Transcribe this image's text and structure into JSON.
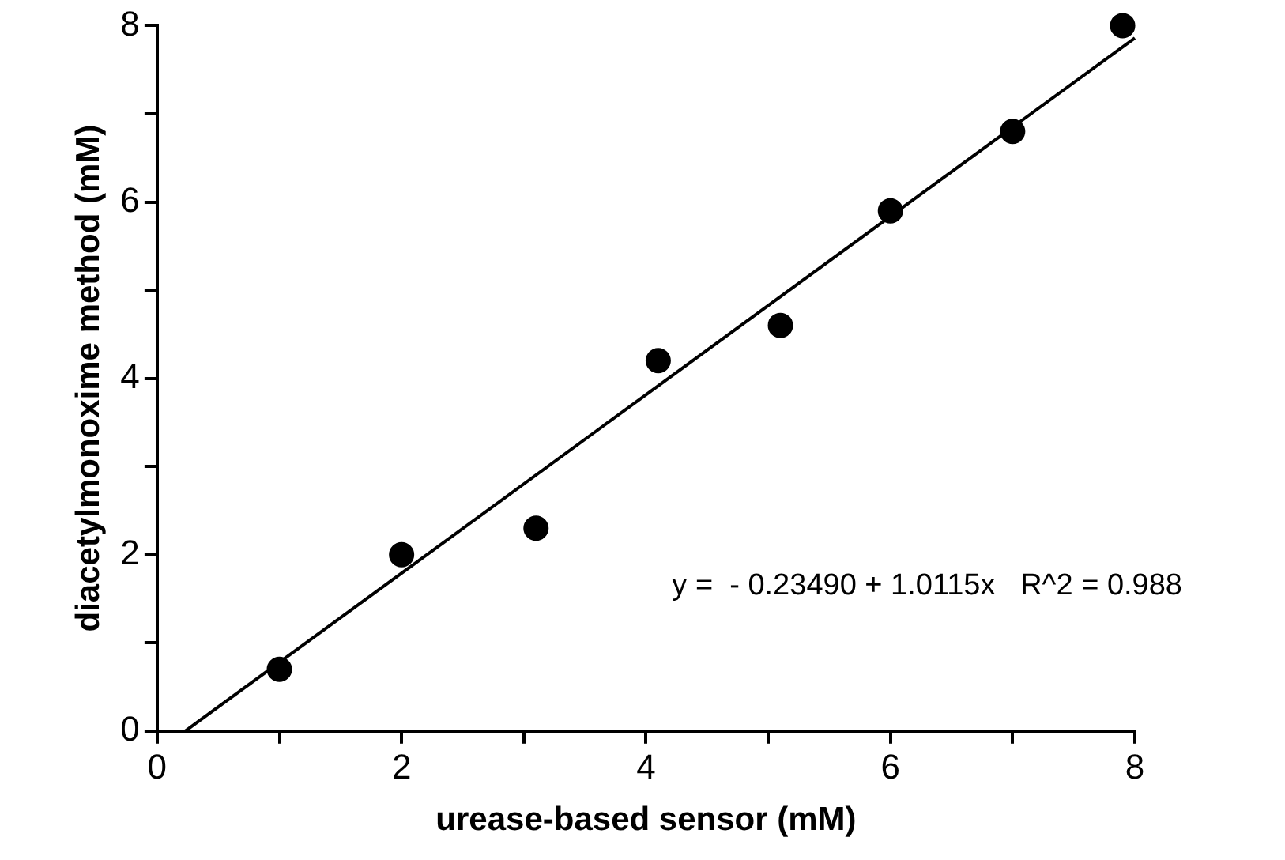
{
  "chart_data": {
    "type": "scatter",
    "xlabel": "urease-based sensor (mM)",
    "ylabel": "diacetylmonoxime method (mM)",
    "series": [
      {
        "color": "#000000",
        "x": [
          1.0,
          2.0,
          3.1,
          4.1,
          5.1,
          6.0,
          7.0,
          7.9
        ],
        "values": [
          0.7,
          2.0,
          2.3,
          4.2,
          4.6,
          5.9,
          6.8,
          8.0
        ],
        "marker": "circle"
      },
      {
        "type": "line",
        "color": "#000000",
        "x": [
          0.23,
          8.0
        ],
        "values": [
          0,
          7.86
        ],
        "marker": "none",
        "line_style": "solid"
      }
    ],
    "xlim": [
      0,
      8
    ],
    "ylim": [
      0,
      8
    ],
    "xticks": [
      0,
      {
        "value": 1,
        "label": null
      },
      2,
      {
        "value": 3,
        "label": null
      },
      4,
      {
        "value": 5,
        "label": null
      },
      6,
      {
        "value": 7,
        "label": null
      },
      8
    ],
    "yticks": [
      0,
      {
        "value": 1,
        "label": null
      },
      2,
      {
        "value": 3,
        "label": null
      },
      4,
      {
        "value": 5,
        "label": null
      },
      6,
      {
        "value": 7,
        "label": null
      },
      8
    ],
    "grid": false,
    "legend": false,
    "annotations": [
      "y =  - 0.23490 + 1.0115x   R^2 = 0.988"
    ]
  }
}
